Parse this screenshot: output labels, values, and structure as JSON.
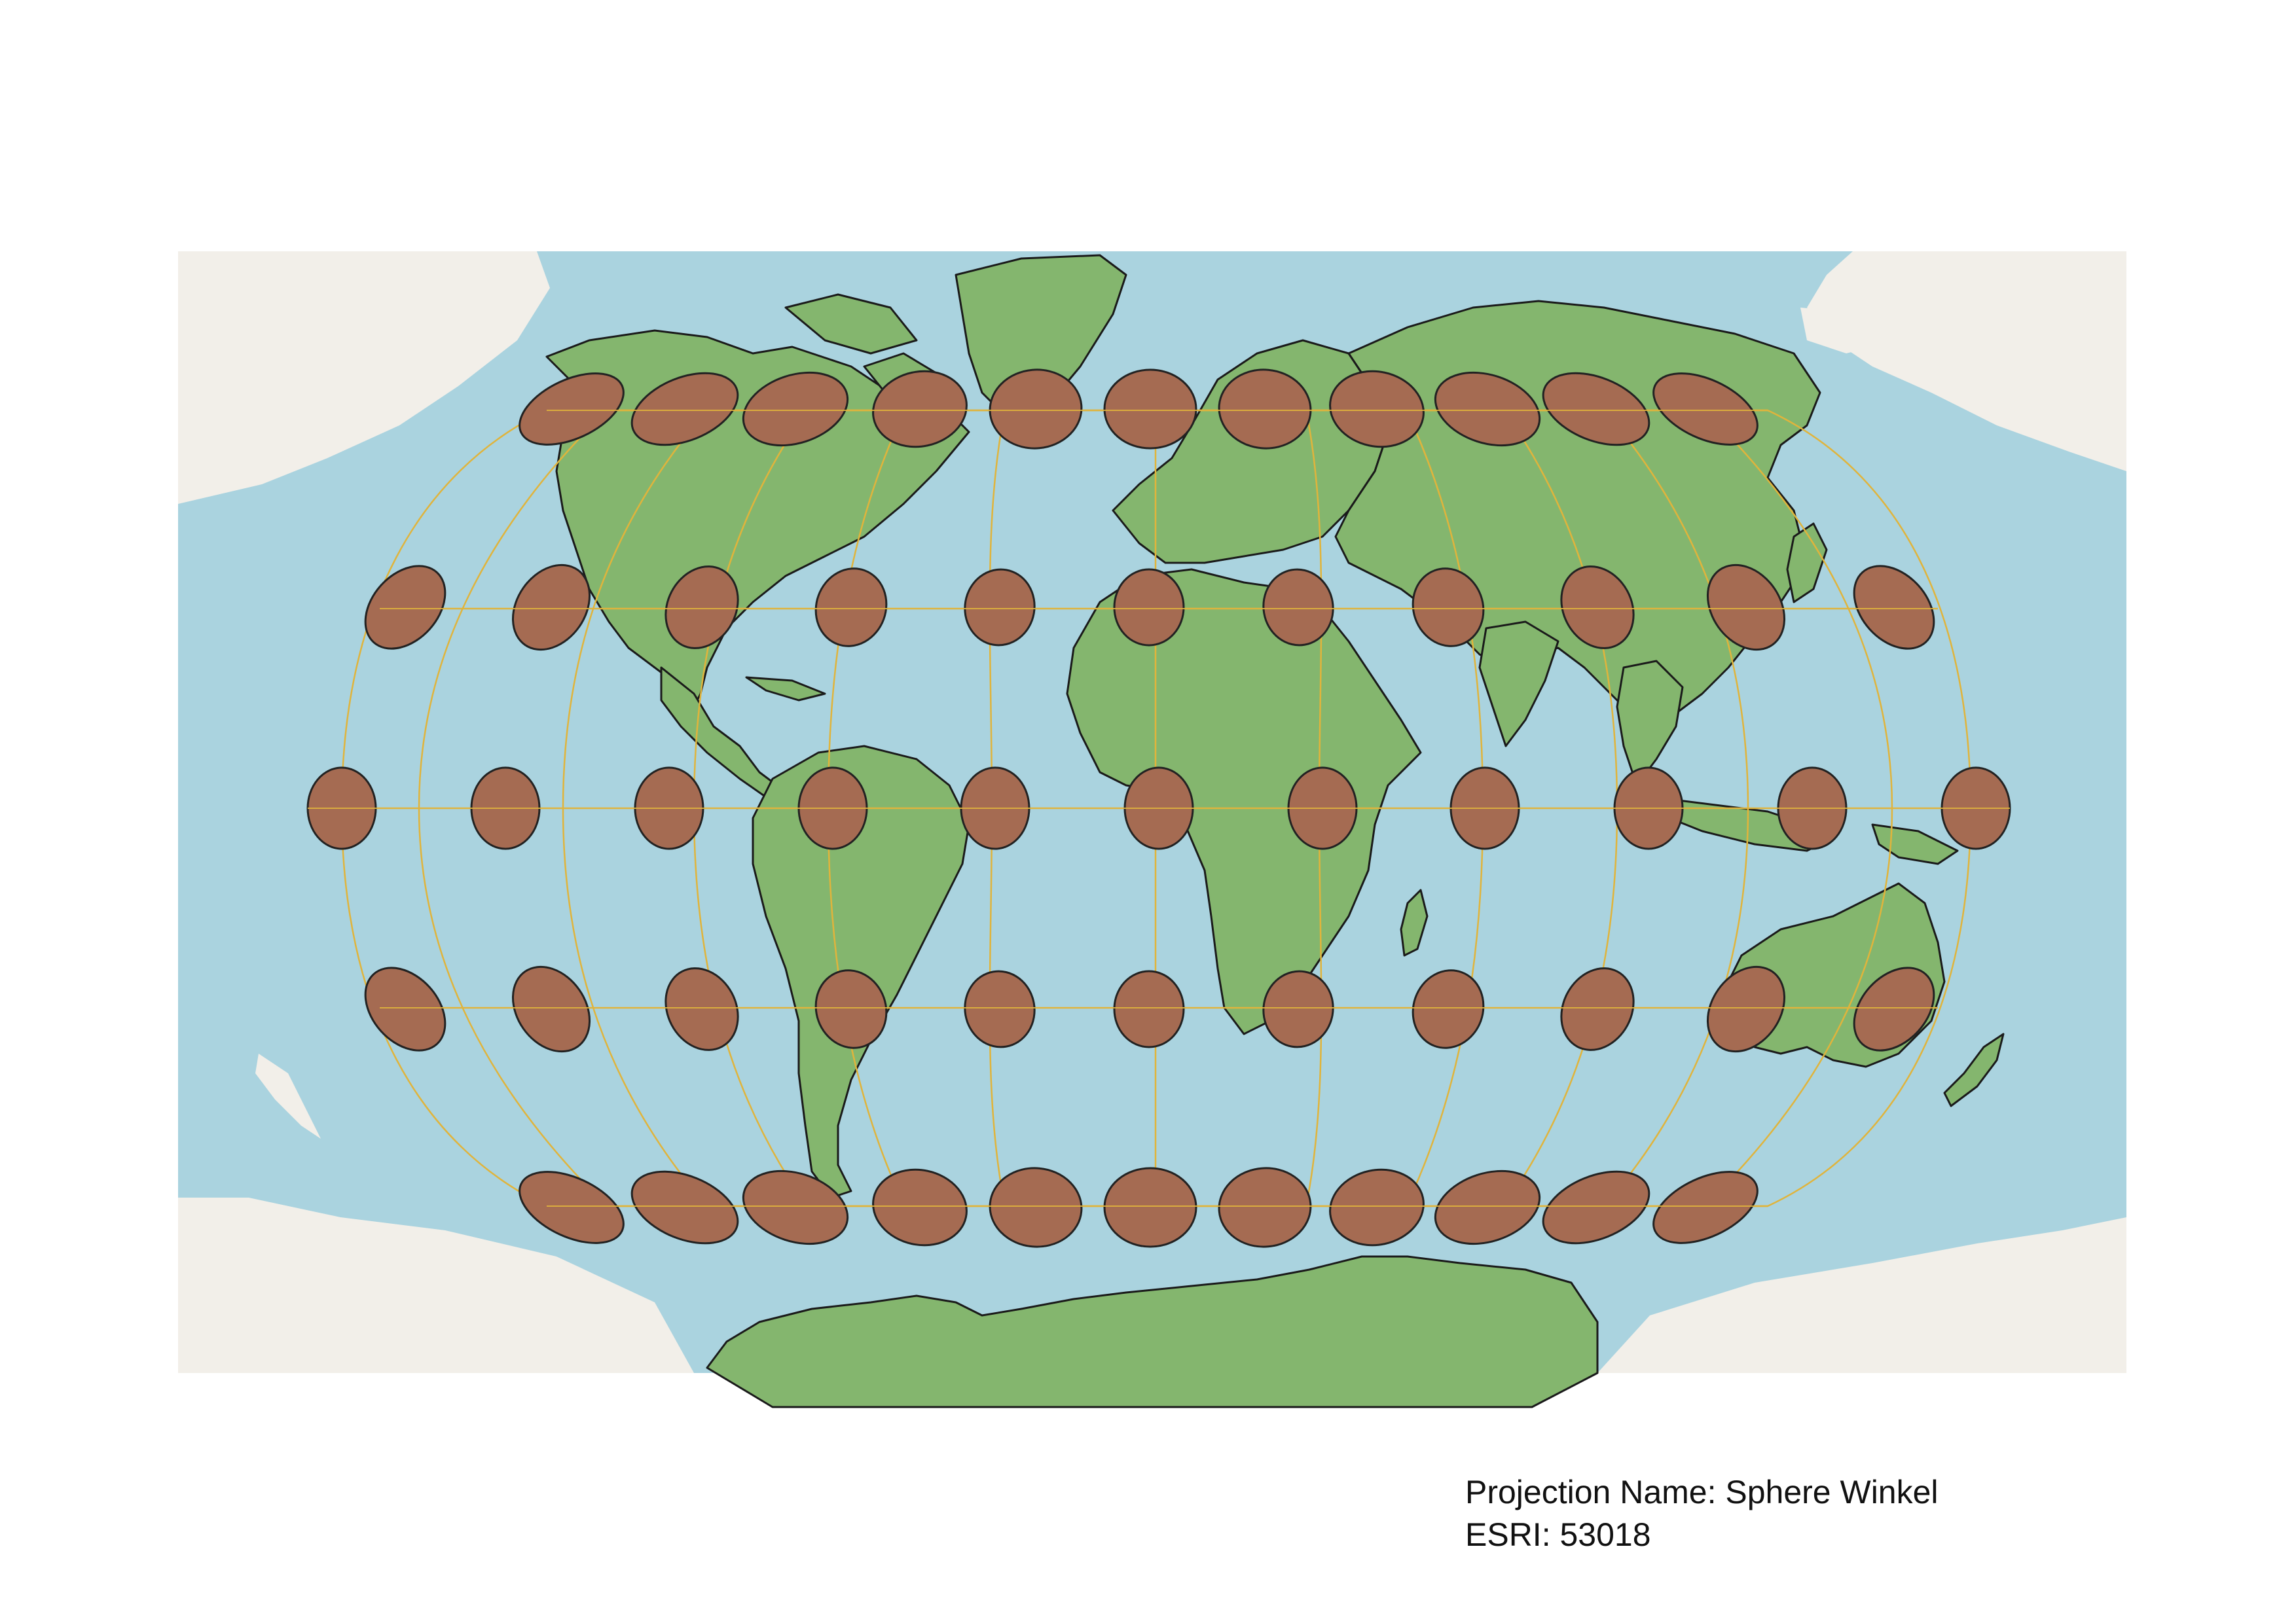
{
  "caption": {
    "projection_name": "Projection Name: Sphere Winkel",
    "esri_code": "ESRI: 53018"
  },
  "colors": {
    "ocean": "#aad3df",
    "ice": "#f2efe9",
    "land": "#84b66e",
    "border": "#1a1a1a",
    "graticule": "#e0b43c",
    "indicatrix_fill": "#a56b52",
    "indicatrix_stroke": "#222222"
  },
  "map": {
    "projection": "Winkel Tripel (sphere)",
    "graticule_parallels_deg": [
      -60,
      -30,
      0,
      30,
      60
    ],
    "graticule_meridians_deg": [
      -150,
      -120,
      -90,
      -60,
      -30,
      0,
      30,
      60,
      90,
      120,
      150
    ],
    "tissot_indicatrices": {
      "latitudes_deg": [
        60,
        30,
        0,
        -30,
        -60
      ],
      "longitudes_deg": [
        -150,
        -120,
        -90,
        -60,
        -30,
        0,
        30,
        60,
        90,
        120,
        150,
        180
      ]
    }
  }
}
